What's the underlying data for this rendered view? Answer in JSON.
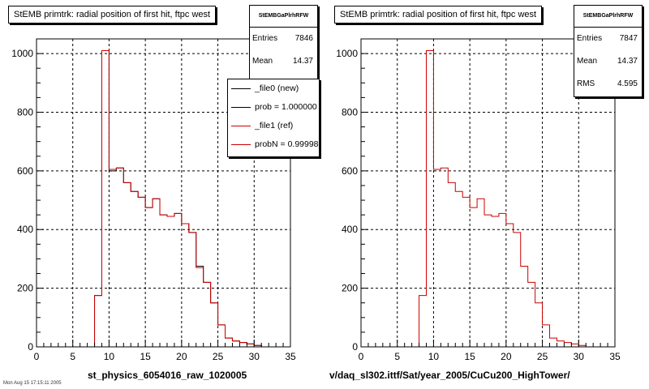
{
  "chart_data": [
    {
      "type": "histogram",
      "title": "StEMB primtrk: radial position of first hit, ftpc west",
      "stats": {
        "name": "StEMBGaPlrhRFW",
        "rows": [
          {
            "label": "Entries",
            "value": "7846"
          },
          {
            "label": "Mean",
            "value": "14.37"
          }
        ]
      },
      "legend": [
        {
          "label": "_file0 (new)",
          "color": "#000000"
        },
        {
          "label": "prob = 1.000000",
          "color": "#000000"
        },
        {
          "label": "_file1 (ref)",
          "color": "#cc0000"
        },
        {
          "label": "probN = 0.999989",
          "color": "#cc0000"
        }
      ],
      "xlabel": "st_physics_6054016_raw_1020005",
      "xlim": [
        0,
        35
      ],
      "ylim": [
        0,
        1050
      ],
      "xticks": [
        0,
        5,
        10,
        15,
        20,
        25,
        30,
        35
      ],
      "yticks": [
        0,
        200,
        400,
        600,
        800,
        1000
      ],
      "grid": true,
      "bins": {
        "start": 0,
        "width": 1
      },
      "series": [
        {
          "color": "#000000",
          "values": [
            0,
            0,
            0,
            0,
            0,
            0,
            0,
            0,
            175,
            1010,
            600,
            610,
            560,
            530,
            510,
            475,
            505,
            450,
            445,
            455,
            420,
            390,
            275,
            220,
            150,
            75,
            30,
            20,
            15,
            10,
            5,
            0,
            0,
            0,
            0
          ]
        },
        {
          "color": "#cc0000",
          "values": [
            0,
            0,
            0,
            0,
            0,
            0,
            0,
            0,
            175,
            1010,
            605,
            610,
            560,
            530,
            510,
            475,
            505,
            450,
            445,
            455,
            420,
            390,
            270,
            220,
            150,
            75,
            30,
            20,
            15,
            10,
            5,
            0,
            0,
            0,
            0
          ]
        }
      ]
    },
    {
      "type": "histogram",
      "title": "StEMB primtrk: radial position of first hit, ftpc west",
      "stats": {
        "name": "StEMBGaPlrhRFW",
        "rows": [
          {
            "label": "Entries",
            "value": "7847"
          },
          {
            "label": "Mean",
            "value": "14.37"
          },
          {
            "label": "RMS",
            "value": "4.595"
          }
        ]
      },
      "xlabel": "v/daq_sl302.ittf/Sat/year_2005/CuCu200_HighTower/",
      "xlim": [
        0,
        35
      ],
      "ylim": [
        0,
        1050
      ],
      "xticks": [
        0,
        5,
        10,
        15,
        20,
        25,
        30,
        35
      ],
      "yticks": [
        0,
        200,
        400,
        600,
        800,
        1000
      ],
      "grid": true,
      "bins": {
        "start": 0,
        "width": 1
      },
      "series": [
        {
          "color": "#cc0000",
          "values": [
            0,
            0,
            0,
            0,
            0,
            0,
            0,
            0,
            175,
            1010,
            605,
            610,
            560,
            530,
            510,
            475,
            505,
            450,
            445,
            455,
            420,
            390,
            275,
            220,
            150,
            75,
            30,
            20,
            15,
            10,
            5,
            0,
            0,
            0,
            0
          ]
        }
      ]
    }
  ],
  "footer": "Mon Aug 15 17:15:11 2005"
}
